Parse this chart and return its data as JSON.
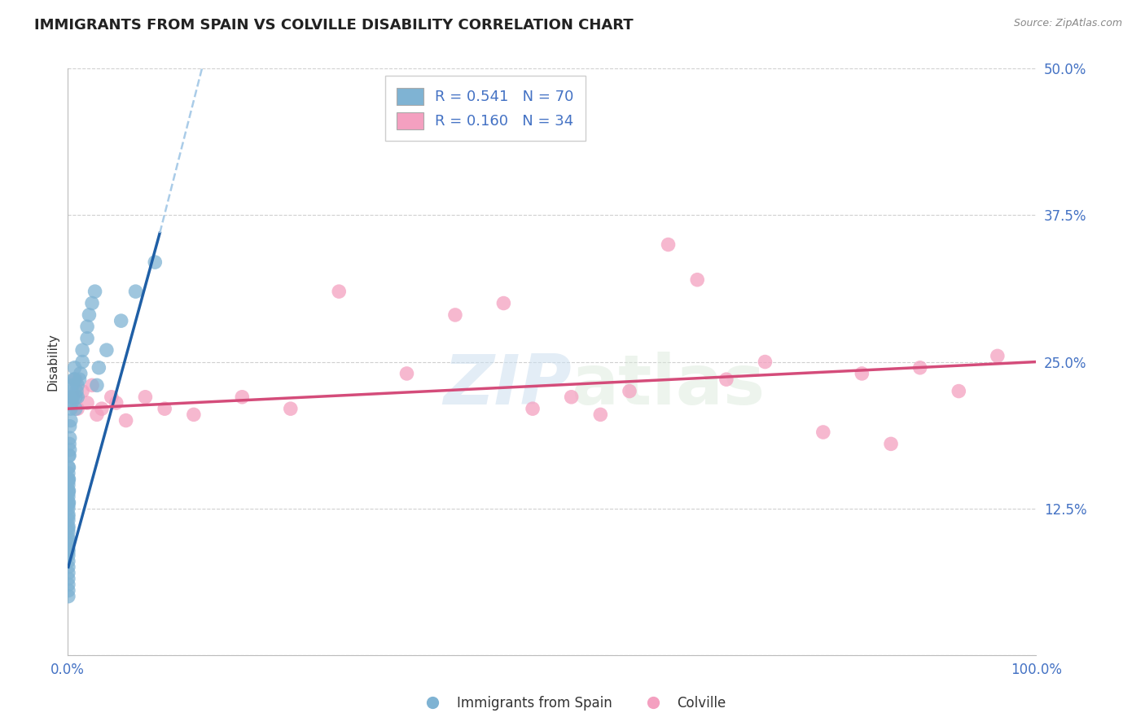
{
  "title": "IMMIGRANTS FROM SPAIN VS COLVILLE DISABILITY CORRELATION CHART",
  "source": "Source: ZipAtlas.com",
  "ylabel": "Disability",
  "xlim": [
    0,
    100
  ],
  "ylim": [
    0,
    50
  ],
  "yticks": [
    0,
    12.5,
    25.0,
    37.5,
    50.0
  ],
  "blue_color": "#7fb3d3",
  "pink_color": "#f4a0c0",
  "blue_line_color": "#1f5fa6",
  "pink_line_color": "#d44c7a",
  "blue_dash_color": "#aacce8",
  "watermark_color": "#ddeeff",
  "legend_r_blue": "R = 0.541",
  "legend_n_blue": "N = 70",
  "legend_r_pink": "R = 0.160",
  "legend_n_pink": "N = 34",
  "legend_label_blue": "Immigrants from Spain",
  "legend_label_pink": "Colville",
  "blue_dots_x": [
    0.05,
    0.05,
    0.05,
    0.05,
    0.05,
    0.05,
    0.05,
    0.05,
    0.05,
    0.05,
    0.05,
    0.05,
    0.05,
    0.05,
    0.05,
    0.05,
    0.05,
    0.05,
    0.05,
    0.05,
    0.05,
    0.05,
    0.05,
    0.05,
    0.05,
    0.05,
    0.05,
    0.05,
    0.05,
    0.05,
    0.1,
    0.1,
    0.1,
    0.1,
    0.1,
    0.15,
    0.15,
    0.2,
    0.2,
    0.2,
    0.3,
    0.3,
    0.3,
    0.4,
    0.4,
    0.5,
    0.5,
    0.6,
    0.7,
    0.7,
    0.8,
    0.8,
    0.9,
    1.0,
    1.0,
    1.2,
    1.3,
    1.5,
    1.5,
    2.0,
    2.0,
    2.2,
    2.5,
    2.8,
    3.0,
    3.2,
    4.0,
    5.5,
    7.0,
    9.0
  ],
  "blue_dots_y": [
    14.5,
    14.0,
    13.5,
    13.0,
    12.5,
    12.0,
    11.5,
    11.0,
    10.5,
    10.0,
    9.5,
    9.0,
    8.5,
    8.0,
    7.5,
    7.0,
    6.5,
    6.0,
    5.5,
    5.0,
    15.0,
    15.5,
    16.0,
    14.8,
    13.8,
    12.8,
    11.8,
    10.8,
    9.8,
    8.8,
    17.0,
    16.0,
    15.0,
    14.0,
    13.0,
    18.0,
    17.0,
    19.5,
    18.5,
    17.5,
    22.0,
    21.0,
    20.0,
    22.5,
    21.5,
    23.0,
    22.0,
    23.5,
    24.5,
    23.5,
    22.0,
    21.0,
    22.5,
    23.0,
    22.0,
    23.5,
    24.0,
    25.0,
    26.0,
    27.0,
    28.0,
    29.0,
    30.0,
    31.0,
    23.0,
    24.5,
    26.0,
    28.5,
    31.0,
    33.5
  ],
  "pink_dots_x": [
    0.5,
    0.8,
    1.0,
    1.5,
    2.0,
    2.5,
    3.0,
    3.5,
    4.5,
    5.0,
    6.0,
    8.0,
    10.0,
    13.0,
    18.0,
    23.0,
    28.0,
    35.0,
    40.0,
    45.0,
    48.0,
    52.0,
    55.0,
    58.0,
    62.0,
    65.0,
    68.0,
    72.0,
    78.0,
    82.0,
    85.0,
    88.0,
    92.0,
    96.0
  ],
  "pink_dots_y": [
    22.0,
    23.5,
    21.0,
    22.5,
    21.5,
    23.0,
    20.5,
    21.0,
    22.0,
    21.5,
    20.0,
    22.0,
    21.0,
    20.5,
    22.0,
    21.0,
    31.0,
    24.0,
    29.0,
    30.0,
    21.0,
    22.0,
    20.5,
    22.5,
    35.0,
    32.0,
    23.5,
    25.0,
    19.0,
    24.0,
    18.0,
    24.5,
    22.5,
    25.5
  ],
  "blue_trend_x1": 0.05,
  "blue_trend_y1": 7.5,
  "blue_trend_x2": 9.5,
  "blue_trend_y2": 36.0,
  "blue_dash_x1": 9.5,
  "blue_dash_y1": 36.0,
  "blue_dash_x2": 14.0,
  "blue_dash_y2": 50.5,
  "pink_trend_x1": 0.0,
  "pink_trend_y1": 21.0,
  "pink_trend_x2": 100.0,
  "pink_trend_y2": 25.0,
  "grid_color": "#d0d0d0",
  "bg_color": "#ffffff",
  "tick_color": "#4472c4",
  "title_color": "#222222",
  "source_color": "#888888",
  "ylabel_color": "#333333"
}
